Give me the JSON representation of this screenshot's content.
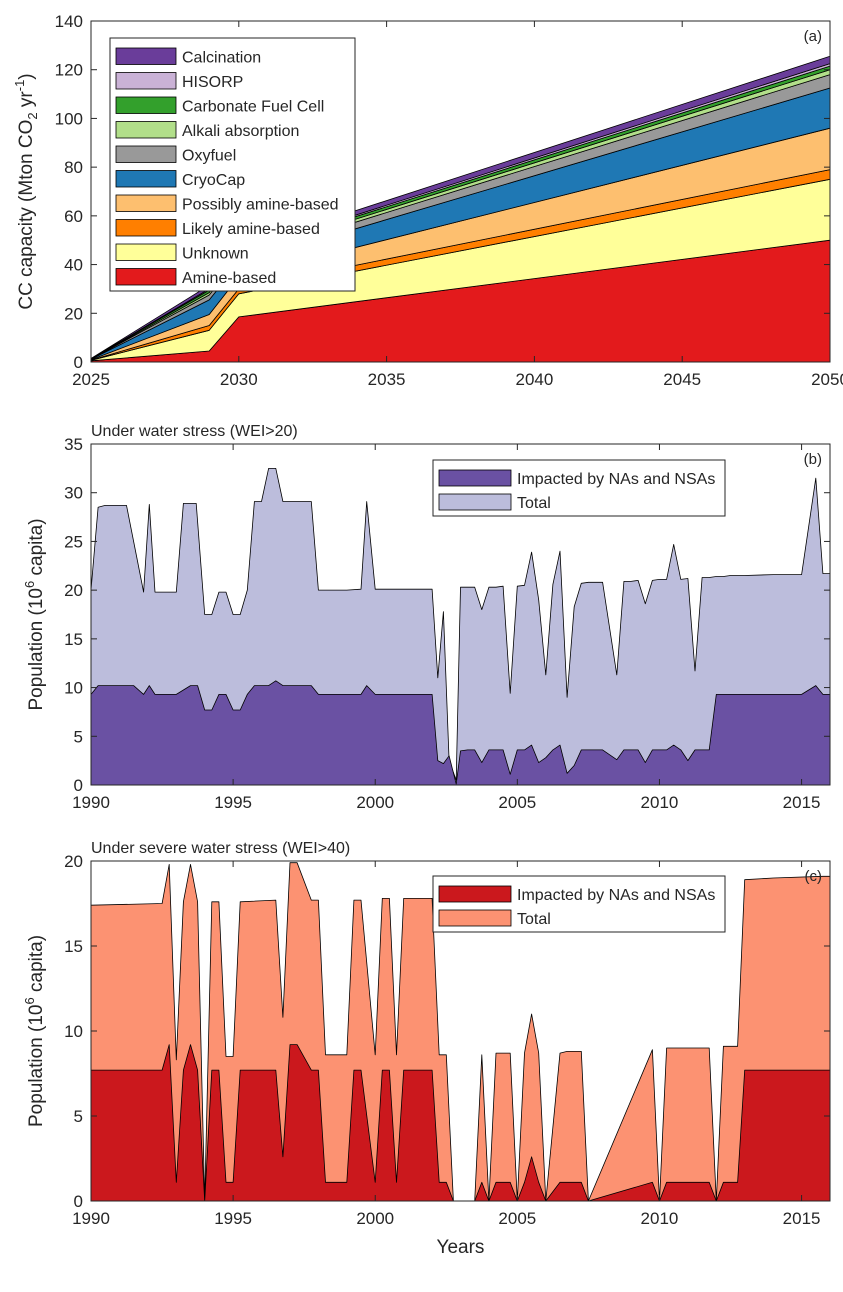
{
  "chart_data": [
    {
      "type": "area",
      "stacked": true,
      "panel_label": "(a)",
      "ylabel_main": "CC capacity (Mton CO",
      "ylabel_sub": "2",
      "ylabel_mid": " yr",
      "ylabel_sup": "-1",
      "ylabel_end": ")",
      "xlim": [
        2025,
        2050
      ],
      "ylim": [
        0,
        140
      ],
      "xticks": [
        "2025",
        "2030",
        "2035",
        "2040",
        "2045",
        "2050"
      ],
      "yticks": [
        "0",
        "20",
        "40",
        "60",
        "80",
        "100",
        "120",
        "140"
      ],
      "legend_position": "top-left",
      "x": [
        2025,
        2029,
        2030,
        2050
      ],
      "series": [
        {
          "name": "Amine-based",
          "color": "#e31a1c",
          "values": [
            0.5,
            4.5,
            18.5,
            50
          ]
        },
        {
          "name": "Unknown",
          "color": "#ffff99",
          "values": [
            0.2,
            8.5,
            9.5,
            25
          ]
        },
        {
          "name": "Likely amine-based",
          "color": "#ff7f00",
          "values": [
            0.1,
            2.0,
            2.0,
            4
          ]
        },
        {
          "name": "Possibly amine-based",
          "color": "#fdbf6f",
          "values": [
            0.1,
            4.5,
            5.0,
            17
          ]
        },
        {
          "name": "CryoCap",
          "color": "#1f78b4",
          "values": [
            0.2,
            6.0,
            5.5,
            16.5
          ]
        },
        {
          "name": "Oxyfuel",
          "color": "#999999",
          "values": [
            0.1,
            2.0,
            2.0,
            5.5
          ]
        },
        {
          "name": "Alkali absorption",
          "color": "#b2df8a",
          "values": [
            0.05,
            1.0,
            1.0,
            2.0
          ]
        },
        {
          "name": "Carbonate Fuel Cell",
          "color": "#33a02c",
          "values": [
            0.05,
            1.0,
            1.0,
            1.5
          ]
        },
        {
          "name": "HISORP",
          "color": "#cab2d6",
          "values": [
            0.05,
            0.5,
            0.5,
            1.0
          ]
        },
        {
          "name": "Calcination",
          "color": "#6a3d9a",
          "values": [
            0.1,
            1.5,
            1.5,
            3.0
          ]
        }
      ]
    },
    {
      "type": "area",
      "panel_label": "(b)",
      "title": "Under water stress (WEI>20)",
      "ylabel_main": "Population (10",
      "ylabel_sup": "6",
      "ylabel_end": " capita)",
      "xlim": [
        1990,
        2016
      ],
      "ylim": [
        0,
        35
      ],
      "xticks": [
        "1990",
        "1995",
        "2000",
        "2005",
        "2010",
        "2015"
      ],
      "yticks": [
        "0",
        "5",
        "10",
        "15",
        "20",
        "25",
        "30",
        "35"
      ],
      "legend_position": "top-right",
      "series": [
        {
          "name": "Total",
          "color": "#bcbddc",
          "x": [
            1990,
            1990.25,
            1990.5,
            1991.25,
            1991.6,
            1991.85,
            1992.05,
            1992.25,
            1992.5,
            1993.0,
            1993.25,
            1993.7,
            1994.0,
            1994.25,
            1994.5,
            1994.75,
            1995.0,
            1995.25,
            1995.5,
            1995.75,
            1996.0,
            1996.25,
            1996.5,
            1996.75,
            1997.0,
            1997.25,
            1997.75,
            1998.0,
            1999.0,
            1999.5,
            1999.7,
            2000.0,
            2001.0,
            2002.0,
            2002.2,
            2002.4,
            2002.6,
            2002.85,
            2003.0,
            2003.25,
            2003.5,
            2003.75,
            2004.0,
            2004.25,
            2004.5,
            2004.75,
            2005.0,
            2005.25,
            2005.5,
            2005.75,
            2006.0,
            2006.25,
            2006.5,
            2006.75,
            2007.0,
            2007.25,
            2007.5,
            2007.75,
            2008.0,
            2008.5,
            2008.75,
            2009.0,
            2009.25,
            2009.5,
            2009.75,
            2010.0,
            2010.25,
            2010.5,
            2010.75,
            2011.0,
            2011.25,
            2011.5,
            2011.75,
            2012.0,
            2012.25,
            2012.5,
            2013.0,
            2014.0,
            2015.0,
            2015.5,
            2015.75,
            2016.0
          ],
          "values": [
            20,
            28.5,
            28.7,
            28.7,
            23.5,
            19.8,
            28.8,
            19.8,
            19.8,
            19.8,
            28.9,
            28.9,
            17.5,
            17.5,
            19.8,
            19.8,
            17.5,
            17.5,
            20,
            29.1,
            29.1,
            32.5,
            32.5,
            29.1,
            29.1,
            29.1,
            29.1,
            20,
            20,
            20.1,
            29.1,
            20.1,
            20.1,
            20.1,
            11,
            17.8,
            2.5,
            0.5,
            20.3,
            20.3,
            20.3,
            18,
            20.3,
            20.3,
            20.4,
            9.4,
            20.4,
            20.5,
            23.9,
            19,
            11.3,
            20.6,
            24,
            9,
            18.3,
            20.7,
            20.8,
            20.8,
            20.8,
            11.3,
            20.9,
            20.9,
            21,
            18.6,
            21,
            21.1,
            21.1,
            24.7,
            21.1,
            21.2,
            11.7,
            21.3,
            21.3,
            21.4,
            21.4,
            21.5,
            21.5,
            21.6,
            21.6,
            31.5,
            21.7,
            21.7
          ]
        },
        {
          "name": "Impacted by NAs and NSAs",
          "color": "#6a51a3",
          "x": [
            1990,
            1990.25,
            1991.0,
            1991.5,
            1991.85,
            1992.05,
            1992.25,
            1992.75,
            1993.0,
            1993.5,
            1993.75,
            1994.0,
            1994.25,
            1994.5,
            1994.75,
            1995.0,
            1995.25,
            1995.5,
            1995.75,
            1996.0,
            1996.25,
            1996.5,
            1996.75,
            1997.0,
            1997.5,
            1997.75,
            1998.0,
            1999.0,
            1999.5,
            1999.7,
            2000.0,
            2001.0,
            2002.0,
            2002.2,
            2002.4,
            2002.6,
            2002.85,
            2003.0,
            2003.25,
            2003.5,
            2003.75,
            2004.0,
            2004.25,
            2004.5,
            2004.75,
            2005.0,
            2005.25,
            2005.5,
            2005.75,
            2006.0,
            2006.25,
            2006.5,
            2006.75,
            2007.0,
            2007.25,
            2007.5,
            2007.75,
            2008.0,
            2008.5,
            2008.75,
            2009.0,
            2009.25,
            2009.5,
            2009.75,
            2010.0,
            2010.25,
            2010.5,
            2010.75,
            2011.0,
            2011.25,
            2011.5,
            2011.75,
            2012.0,
            2012.25,
            2012.5,
            2013.0,
            2014.0,
            2015.0,
            2015.5,
            2015.75,
            2016.0
          ],
          "values": [
            9.3,
            10.2,
            10.2,
            10.2,
            9.3,
            10.2,
            9.3,
            9.3,
            9.3,
            10.2,
            10.2,
            7.7,
            7.7,
            9.3,
            9.3,
            7.7,
            7.7,
            9.3,
            10.2,
            10.2,
            10.2,
            10.7,
            10.2,
            10.2,
            10.2,
            10.2,
            9.3,
            9.3,
            9.3,
            10.2,
            9.3,
            9.3,
            9.3,
            2.5,
            2.2,
            3.0,
            0.1,
            3.5,
            3.6,
            3.6,
            2.3,
            3.6,
            3.6,
            3.6,
            1.1,
            3.6,
            3.6,
            4.1,
            2.3,
            2.8,
            3.6,
            4.1,
            1.2,
            2.0,
            3.6,
            3.6,
            3.6,
            3.6,
            2.6,
            3.6,
            3.6,
            3.6,
            2.3,
            3.6,
            3.6,
            3.6,
            4.1,
            3.6,
            2.5,
            3.6,
            3.6,
            3.6,
            9.3,
            9.3,
            9.3,
            9.3,
            9.3,
            9.3,
            10.2,
            9.3,
            9.3
          ]
        }
      ]
    },
    {
      "type": "area",
      "panel_label": "(c)",
      "title": "Under severe water stress (WEI>40)",
      "ylabel_main": "Population (10",
      "ylabel_sup": "6",
      "ylabel_end": " capita)",
      "xlabel": "Years",
      "xlim": [
        1990,
        2016
      ],
      "ylim": [
        0,
        20
      ],
      "xticks": [
        "1990",
        "1995",
        "2000",
        "2005",
        "2010",
        "2015"
      ],
      "yticks": [
        "0",
        "5",
        "10",
        "15",
        "20"
      ],
      "legend_position": "top-right",
      "series": [
        {
          "name": "Total",
          "color": "#fc9272",
          "x": [
            1990,
            1992.5,
            1992.75,
            1993.0,
            1993.25,
            1993.5,
            1993.75,
            1994.0,
            1994.25,
            1994.5,
            1994.75,
            1995.0,
            1995.25,
            1996.5,
            1996.75,
            1997.0,
            1997.25,
            1997.75,
            1998.0,
            1998.25,
            1998.5,
            1999.0,
            1999.25,
            1999.5,
            2000.0,
            2000.25,
            2000.5,
            2000.75,
            2001.0,
            2001.25,
            2002.0,
            2002.25,
            2002.5,
            2002.75,
            2003.5,
            2003.75,
            2004.0,
            2004.25,
            2004.5,
            2004.75,
            2005.0,
            2005.25,
            2005.5,
            2005.75,
            2006.0,
            2006.5,
            2006.75,
            2007.25,
            2007.5,
            2009.75,
            2010.0,
            2010.25,
            2011.75,
            2012.0,
            2012.25,
            2012.75,
            2013.0,
            2014.0,
            2015.75,
            2016.0
          ],
          "values": [
            17.4,
            17.5,
            19.8,
            8.3,
            17.6,
            19.8,
            17.6,
            0,
            17.6,
            17.6,
            8.5,
            8.5,
            17.6,
            17.7,
            10.8,
            19.9,
            19.9,
            17.7,
            17.7,
            8.6,
            8.6,
            8.6,
            17.7,
            17.7,
            8.6,
            17.8,
            17.8,
            8.6,
            17.8,
            17.8,
            17.8,
            8.6,
            8.6,
            0,
            0,
            8.6,
            0,
            8.7,
            8.7,
            8.7,
            0,
            8.7,
            11.0,
            8.7,
            0,
            8.7,
            8.8,
            8.8,
            0,
            8.9,
            0,
            9.0,
            9.0,
            0,
            9.1,
            9.1,
            18.9,
            19.0,
            19.1,
            19.1
          ]
        },
        {
          "name": "Impacted by NAs and NSAs",
          "color": "#cb181d",
          "x": [
            1990,
            1992.5,
            1992.75,
            1993.0,
            1993.25,
            1993.5,
            1993.75,
            1994.0,
            1994.25,
            1994.5,
            1994.75,
            1995.0,
            1995.25,
            1996.5,
            1996.75,
            1997.0,
            1997.25,
            1997.75,
            1998.0,
            1998.25,
            1998.5,
            1999.0,
            1999.25,
            1999.5,
            2000.0,
            2000.25,
            2000.5,
            2000.75,
            2001.0,
            2001.25,
            2002.0,
            2002.25,
            2002.5,
            2002.75,
            2003.5,
            2003.75,
            2004.0,
            2004.25,
            2004.5,
            2004.75,
            2005.0,
            2005.25,
            2005.5,
            2005.75,
            2006.0,
            2006.5,
            2006.75,
            2007.25,
            2007.5,
            2009.75,
            2010.0,
            2010.25,
            2011.75,
            2012.0,
            2012.25,
            2012.75,
            2013.0,
            2014.0,
            2015.75,
            2016.0
          ],
          "values": [
            7.7,
            7.7,
            9.2,
            1.1,
            7.7,
            9.2,
            7.7,
            0,
            7.7,
            7.7,
            1.1,
            1.1,
            7.7,
            7.7,
            2.6,
            9.2,
            9.2,
            7.7,
            7.7,
            1.1,
            1.1,
            1.1,
            7.7,
            7.7,
            1.1,
            7.7,
            7.7,
            1.1,
            7.7,
            7.7,
            7.7,
            1.1,
            1.1,
            0,
            0,
            1.1,
            0,
            1.1,
            1.1,
            1.1,
            0,
            1.1,
            2.6,
            1.1,
            0,
            1.1,
            1.1,
            1.1,
            0,
            1.1,
            0,
            1.1,
            1.1,
            0,
            1.1,
            1.1,
            7.7,
            7.7,
            7.7,
            7.7
          ]
        }
      ]
    }
  ]
}
